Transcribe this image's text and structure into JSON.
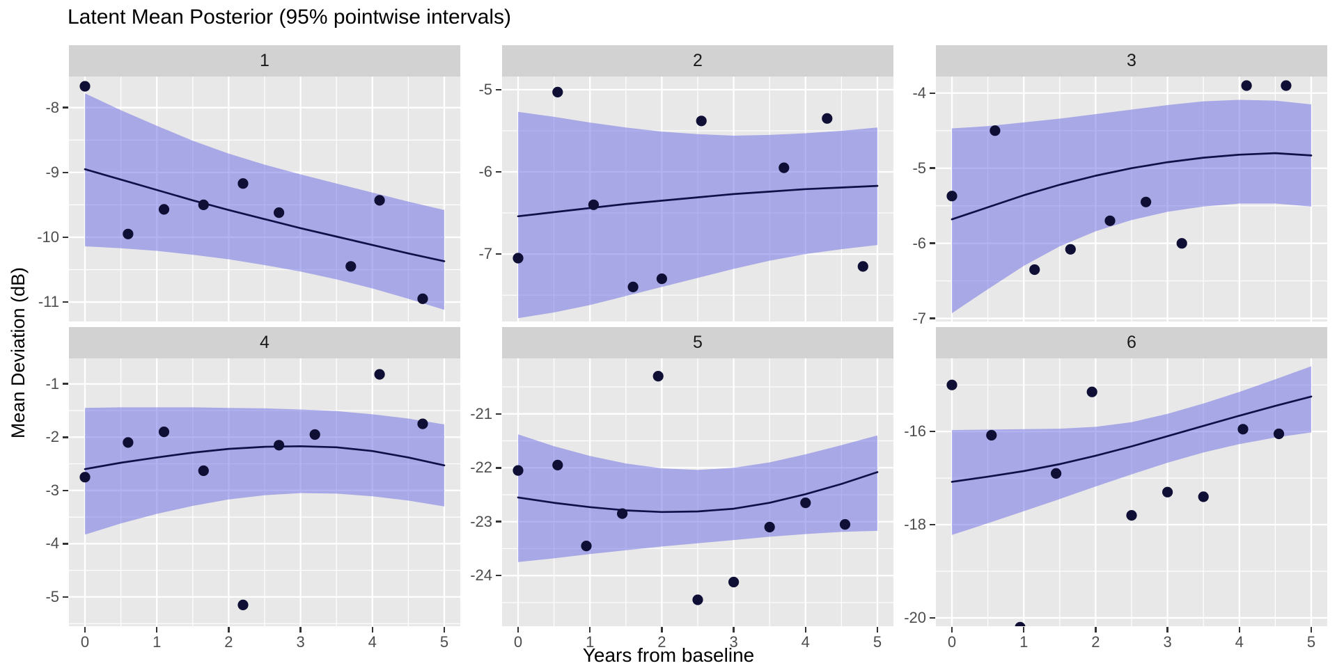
{
  "title": "Latent Mean Posterior (95% pointwise intervals)",
  "chart_data": {
    "type": "scatter",
    "title": "Latent Mean Posterior (95% pointwise intervals)",
    "xlabel": "Years from baseline",
    "ylabel": "Mean Deviation (dB)",
    "facet_layout": "2 rows x 3 cols, shared x axis 0-5, free y scales, ribbon = 95% pointwise interval around posterior mean line",
    "x_ticks": [
      0,
      1,
      2,
      3,
      4,
      5
    ],
    "x_minor": [
      0.5,
      1.5,
      2.5,
      3.5,
      4.5
    ],
    "xlim": [
      -0.223,
      5.223
    ],
    "sample_x": [
      0,
      0.5,
      1,
      1.5,
      2,
      2.5,
      3,
      3.5,
      4,
      4.5,
      5
    ],
    "panels": [
      {
        "label": "1",
        "ylim": [
          -11.3,
          -7.52
        ],
        "yticks": [
          -8,
          -9,
          -10,
          -11
        ],
        "points": [
          [
            0,
            -7.67
          ],
          [
            0.6,
            -9.95
          ],
          [
            1.1,
            -9.57
          ],
          [
            1.65,
            -9.5
          ],
          [
            2.2,
            -9.17
          ],
          [
            2.7,
            -9.62
          ],
          [
            3.7,
            -10.45
          ],
          [
            4.1,
            -9.43
          ],
          [
            4.7,
            -10.95
          ]
        ],
        "line": [
          -8.95,
          -9.11,
          -9.27,
          -9.43,
          -9.58,
          -9.72,
          -9.86,
          -9.99,
          -10.12,
          -10.25,
          -10.37
        ],
        "upper": [
          -7.78,
          -8.04,
          -8.28,
          -8.51,
          -8.71,
          -8.88,
          -9.03,
          -9.17,
          -9.31,
          -9.45,
          -9.58
        ],
        "lower": [
          -10.14,
          -10.17,
          -10.21,
          -10.27,
          -10.34,
          -10.43,
          -10.53,
          -10.65,
          -10.79,
          -10.95,
          -11.12
        ]
      },
      {
        "label": "2",
        "ylim": [
          -7.82,
          -4.84
        ],
        "yticks": [
          -5,
          -6,
          -7
        ],
        "points": [
          [
            0,
            -7.05
          ],
          [
            0.55,
            -5.03
          ],
          [
            1.05,
            -6.4
          ],
          [
            1.6,
            -7.4
          ],
          [
            2.0,
            -7.3
          ],
          [
            2.55,
            -5.38
          ],
          [
            3.7,
            -5.95
          ],
          [
            4.3,
            -5.35
          ],
          [
            4.8,
            -7.15
          ]
        ],
        "line": [
          -6.54,
          -6.49,
          -6.44,
          -6.39,
          -6.35,
          -6.31,
          -6.27,
          -6.24,
          -6.21,
          -6.19,
          -6.17
        ],
        "upper": [
          -5.27,
          -5.33,
          -5.4,
          -5.46,
          -5.51,
          -5.54,
          -5.56,
          -5.55,
          -5.53,
          -5.5,
          -5.46
        ],
        "lower": [
          -7.78,
          -7.71,
          -7.62,
          -7.51,
          -7.4,
          -7.29,
          -7.18,
          -7.08,
          -7.0,
          -6.94,
          -6.89
        ]
      },
      {
        "label": "3",
        "ylim": [
          -7.04,
          -3.78
        ],
        "yticks": [
          -4,
          -5,
          -6,
          -7
        ],
        "points": [
          [
            0,
            -5.37
          ],
          [
            0.6,
            -4.5
          ],
          [
            1.15,
            -6.35
          ],
          [
            1.65,
            -6.08
          ],
          [
            2.2,
            -5.7
          ],
          [
            2.7,
            -5.45
          ],
          [
            3.2,
            -6.0
          ],
          [
            4.1,
            -3.9
          ],
          [
            4.65,
            -3.9
          ]
        ],
        "line": [
          -5.68,
          -5.52,
          -5.36,
          -5.22,
          -5.1,
          -5.0,
          -4.92,
          -4.86,
          -4.82,
          -4.8,
          -4.83
        ],
        "upper": [
          -4.47,
          -4.44,
          -4.39,
          -4.34,
          -4.28,
          -4.22,
          -4.16,
          -4.11,
          -4.09,
          -4.1,
          -4.15
        ],
        "lower": [
          -6.93,
          -6.61,
          -6.3,
          -6.04,
          -5.84,
          -5.69,
          -5.58,
          -5.51,
          -5.47,
          -5.47,
          -5.51
        ]
      },
      {
        "label": "4",
        "ylim": [
          -5.55,
          -0.52
        ],
        "yticks": [
          -1,
          -2,
          -3,
          -4,
          -5
        ],
        "points": [
          [
            0,
            -2.75
          ],
          [
            0.6,
            -2.1
          ],
          [
            1.1,
            -1.9
          ],
          [
            1.65,
            -2.63
          ],
          [
            2.2,
            -5.15
          ],
          [
            2.7,
            -2.15
          ],
          [
            3.2,
            -1.95
          ],
          [
            4.1,
            -0.82
          ],
          [
            4.7,
            -1.75
          ]
        ],
        "line": [
          -2.6,
          -2.48,
          -2.38,
          -2.29,
          -2.22,
          -2.18,
          -2.17,
          -2.19,
          -2.26,
          -2.38,
          -2.53
        ],
        "upper": [
          -1.45,
          -1.44,
          -1.44,
          -1.44,
          -1.45,
          -1.46,
          -1.48,
          -1.51,
          -1.57,
          -1.65,
          -1.76
        ],
        "lower": [
          -3.83,
          -3.62,
          -3.44,
          -3.29,
          -3.17,
          -3.09,
          -3.05,
          -3.06,
          -3.11,
          -3.19,
          -3.3
        ]
      },
      {
        "label": "5",
        "ylim": [
          -24.94,
          -19.97
        ],
        "yticks": [
          -21,
          -22,
          -23,
          -24
        ],
        "points": [
          [
            0,
            -22.05
          ],
          [
            0.55,
            -21.95
          ],
          [
            0.95,
            -23.45
          ],
          [
            1.45,
            -22.85
          ],
          [
            1.95,
            -20.3
          ],
          [
            2.5,
            -24.45
          ],
          [
            3.0,
            -24.12
          ],
          [
            3.5,
            -23.1
          ],
          [
            4.0,
            -22.65
          ],
          [
            4.55,
            -23.05
          ]
        ],
        "line": [
          -22.55,
          -22.65,
          -22.73,
          -22.79,
          -22.82,
          -22.81,
          -22.76,
          -22.65,
          -22.49,
          -22.3,
          -22.08
        ],
        "upper": [
          -21.38,
          -21.6,
          -21.78,
          -21.92,
          -22.01,
          -22.04,
          -22.0,
          -21.9,
          -21.75,
          -21.58,
          -21.4
        ],
        "lower": [
          -23.75,
          -23.68,
          -23.6,
          -23.53,
          -23.46,
          -23.4,
          -23.34,
          -23.28,
          -23.23,
          -23.19,
          -23.17
        ]
      },
      {
        "label": "6",
        "ylim": [
          -20.18,
          -14.43
        ],
        "yticks": [
          -16,
          -18,
          -20
        ],
        "points": [
          [
            0,
            -15.0
          ],
          [
            0.55,
            -16.08
          ],
          [
            0.95,
            -20.2
          ],
          [
            1.45,
            -16.9
          ],
          [
            1.95,
            -15.15
          ],
          [
            2.5,
            -17.8
          ],
          [
            3.0,
            -17.3
          ],
          [
            3.5,
            -17.4
          ],
          [
            4.05,
            -15.95
          ],
          [
            4.55,
            -16.05
          ]
        ],
        "line": [
          -17.08,
          -16.97,
          -16.85,
          -16.7,
          -16.52,
          -16.32,
          -16.1,
          -15.88,
          -15.66,
          -15.45,
          -15.25
        ],
        "upper": [
          -15.97,
          -15.96,
          -15.95,
          -15.94,
          -15.9,
          -15.8,
          -15.62,
          -15.4,
          -15.15,
          -14.88,
          -14.6
        ],
        "lower": [
          -18.22,
          -17.97,
          -17.71,
          -17.45,
          -17.18,
          -16.92,
          -16.67,
          -16.45,
          -16.27,
          -16.13,
          -16.02
        ]
      }
    ],
    "legend": "none",
    "grid": "white major and minor gridlines on gray panels"
  },
  "colors": {
    "panel_bg": "#e8e8e8",
    "strip_bg": "#d2d2d2",
    "grid_major": "#ffffff",
    "grid_minor": "#ffffff",
    "ribbon": "rgba(104,104,230,0.5)",
    "line": "#101048",
    "point": "#0f0f35",
    "tick_mark": "#333333",
    "tick_label": "#4d4d4d"
  }
}
